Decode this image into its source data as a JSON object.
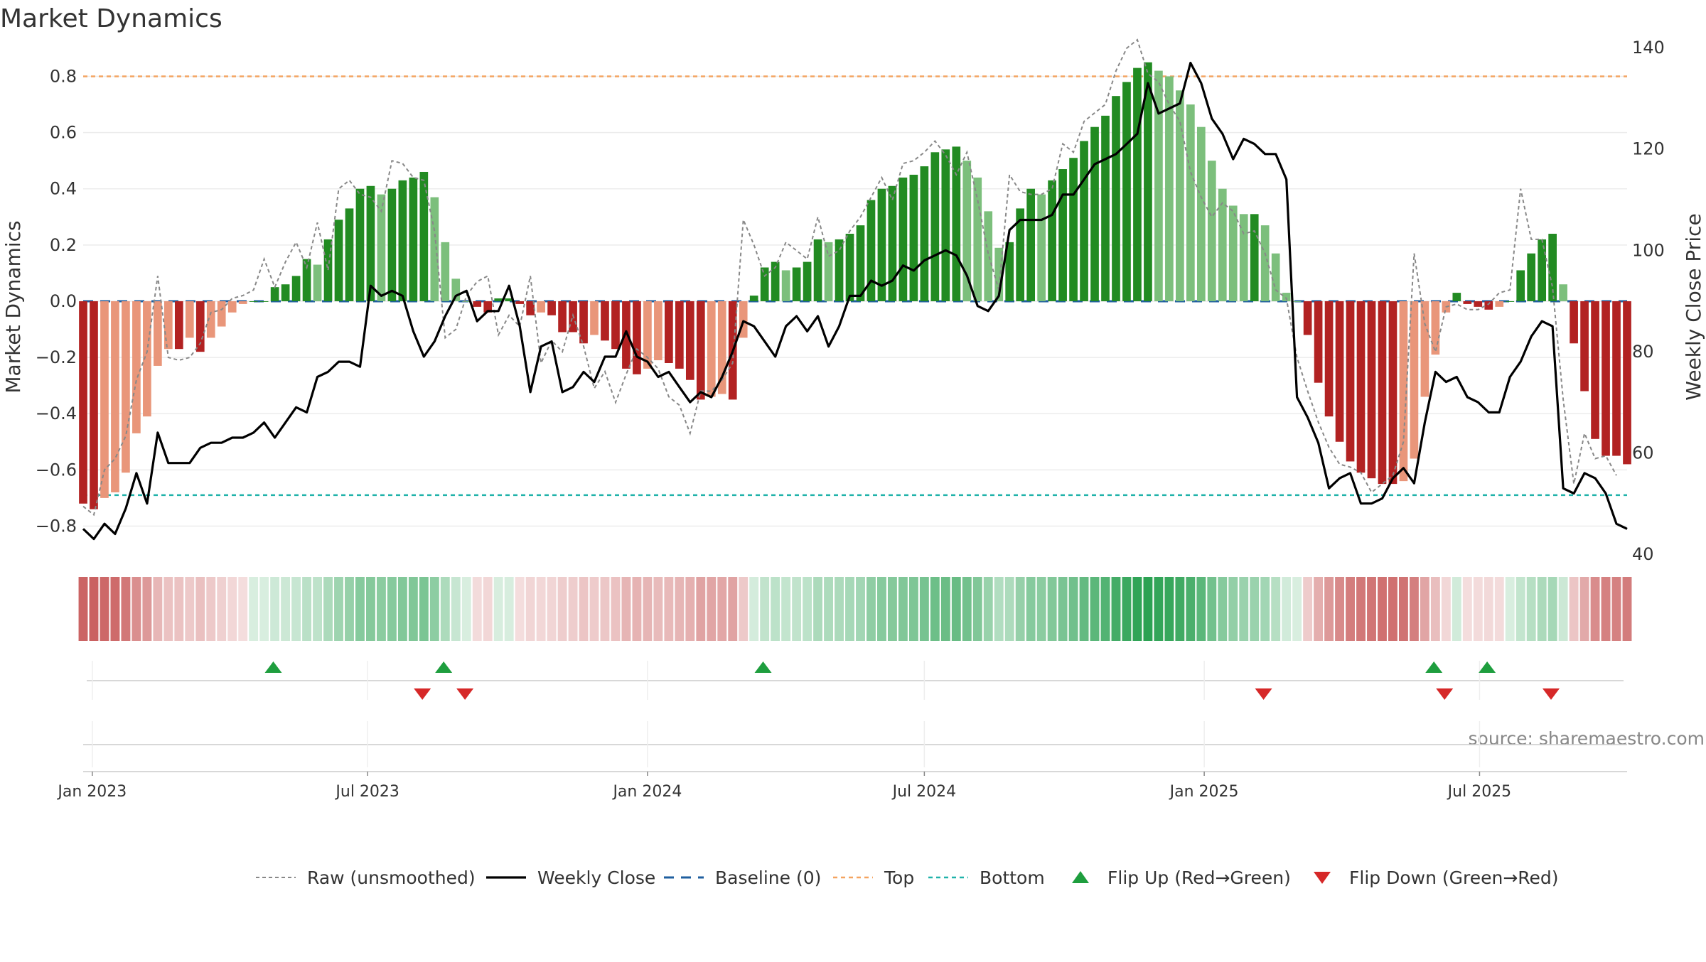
{
  "chart_data": {
    "type": "bar",
    "title": "Market Dynamics",
    "ylabel": "Market Dynamics",
    "y2label": "Weekly Close Price",
    "ylim": [
      -0.9,
      0.92
    ],
    "y2lim": [
      40,
      141
    ],
    "yticks": [
      -0.8,
      -0.6,
      -0.4,
      -0.2,
      0,
      0.2,
      0.4,
      0.6,
      0.8
    ],
    "y2ticks": [
      40,
      60,
      80,
      100,
      120,
      140
    ],
    "start_date": "2022-12-26",
    "x_ticks": [
      {
        "label": "Jan 2023",
        "date": "2023-01-01"
      },
      {
        "label": "Jul 2023",
        "date": "2023-07-01"
      },
      {
        "label": "Jan 2024",
        "date": "2024-01-01"
      },
      {
        "label": "Jul 2024",
        "date": "2024-07-01"
      },
      {
        "label": "Jan 2025",
        "date": "2025-01-01"
      },
      {
        "label": "Jul 2025",
        "date": "2025-07-01"
      }
    ],
    "top_level": 0.8,
    "bottom_level": -0.69,
    "baseline": 0,
    "series": [
      {
        "name": "Market Dynamics",
        "values": [
          -0.72,
          -0.74,
          -0.7,
          -0.68,
          -0.61,
          -0.47,
          -0.41,
          -0.23,
          -0.17,
          -0.17,
          -0.13,
          -0.18,
          -0.13,
          -0.09,
          -0.04,
          -0.01,
          0,
          0,
          0.05,
          0.06,
          0.09,
          0.15,
          0.13,
          0.22,
          0.29,
          0.33,
          0.4,
          0.41,
          0.38,
          0.4,
          0.43,
          0.44,
          0.46,
          0.37,
          0.21,
          0.08,
          0,
          -0.02,
          -0.04,
          0.01,
          0.01,
          -0.01,
          -0.05,
          -0.04,
          -0.05,
          -0.11,
          -0.11,
          -0.15,
          -0.12,
          -0.14,
          -0.17,
          -0.24,
          -0.26,
          -0.24,
          -0.21,
          -0.22,
          -0.24,
          -0.28,
          -0.35,
          -0.34,
          -0.33,
          -0.35,
          -0.13,
          0.02,
          0.12,
          0.14,
          0.11,
          0.12,
          0.14,
          0.22,
          0.21,
          0.22,
          0.24,
          0.27,
          0.36,
          0.4,
          0.41,
          0.44,
          0.45,
          0.48,
          0.53,
          0.54,
          0.55,
          0.5,
          0.44,
          0.32,
          0.19,
          0.21,
          0.33,
          0.4,
          0.38,
          0.43,
          0.47,
          0.51,
          0.57,
          0.62,
          0.66,
          0.73,
          0.78,
          0.83,
          0.85,
          0.82,
          0.8,
          0.75,
          0.7,
          0.62,
          0.5,
          0.4,
          0.34,
          0.31,
          0.31,
          0.27,
          0.17,
          0.03,
          0,
          -0.12,
          -0.29,
          -0.41,
          -0.5,
          -0.57,
          -0.61,
          -0.63,
          -0.65,
          -0.65,
          -0.64,
          -0.56,
          -0.34,
          -0.19,
          -0.04,
          0.03,
          -0.01,
          -0.02,
          -0.03,
          -0.02,
          0,
          0.11,
          0.17,
          0.22,
          0.24,
          0.06,
          -0.15,
          -0.32,
          -0.49,
          -0.55,
          -0.55,
          -0.58
        ]
      },
      {
        "name": "Raw (unsmoothed)",
        "values": [
          -0.73,
          -0.76,
          -0.6,
          -0.56,
          -0.48,
          -0.28,
          -0.18,
          0.09,
          -0.2,
          -0.21,
          -0.2,
          -0.15,
          -0.04,
          -0.03,
          0.01,
          0.02,
          0.04,
          0.15,
          0.05,
          0.14,
          0.21,
          0.12,
          0.28,
          0.11,
          0.4,
          0.43,
          0.38,
          0.37,
          0.32,
          0.5,
          0.49,
          0.44,
          0.43,
          0.25,
          -0.13,
          -0.1,
          0.02,
          0.07,
          0.09,
          -0.12,
          -0.05,
          -0.09,
          0.09,
          -0.22,
          -0.14,
          -0.18,
          -0.05,
          -0.16,
          -0.31,
          -0.25,
          -0.36,
          -0.26,
          -0.17,
          -0.2,
          -0.24,
          -0.34,
          -0.37,
          -0.47,
          -0.32,
          -0.32,
          -0.28,
          -0.22,
          0.29,
          0.2,
          0.09,
          0.12,
          0.21,
          0.18,
          0.15,
          0.3,
          0.16,
          0.18,
          0.25,
          0.3,
          0.37,
          0.44,
          0.36,
          0.49,
          0.5,
          0.53,
          0.57,
          0.52,
          0.45,
          0.53,
          0.36,
          0.17,
          0.04,
          0.45,
          0.39,
          0.38,
          0.38,
          0.4,
          0.56,
          0.53,
          0.64,
          0.67,
          0.7,
          0.82,
          0.9,
          0.93,
          0.81,
          0.78,
          0.7,
          0.64,
          0.46,
          0.37,
          0.3,
          0.35,
          0.32,
          0.24,
          0.25,
          0.17,
          0.04,
          0.01,
          -0.2,
          -0.32,
          -0.43,
          -0.52,
          -0.58,
          -0.59,
          -0.61,
          -0.68,
          -0.65,
          -0.62,
          -0.5,
          0.17,
          -0.08,
          -0.18,
          -0.02,
          -0.01,
          -0.03,
          -0.03,
          -0.01,
          0.03,
          0.04,
          0.4,
          0.22,
          0.22,
          0.05,
          -0.35,
          -0.65,
          -0.47,
          -0.56,
          -0.55,
          -0.62
        ]
      },
      {
        "name": "Weekly Close",
        "values": [
          45,
          43,
          46,
          44,
          49,
          56,
          50,
          64,
          58,
          58,
          58,
          61,
          62,
          62,
          63,
          63,
          64,
          66,
          63,
          66,
          69,
          68,
          75,
          76,
          78,
          78,
          77,
          93,
          91,
          92,
          91,
          84,
          79,
          82,
          87,
          91,
          92,
          86,
          88,
          88,
          93,
          85,
          72,
          81,
          82,
          72,
          73,
          76,
          74,
          79,
          79,
          84,
          79,
          78,
          75,
          76,
          73,
          70,
          72,
          71,
          75,
          80,
          86,
          85,
          82,
          79,
          85,
          87,
          84,
          87,
          81,
          85,
          91,
          91,
          94,
          93,
          94,
          97,
          96,
          98,
          99,
          100,
          99,
          95,
          89,
          88,
          91,
          104,
          106,
          106,
          106,
          107,
          111,
          111,
          114,
          117,
          118,
          119,
          121,
          123,
          133,
          127,
          128,
          129,
          137,
          133,
          126,
          123,
          118,
          122,
          121,
          119,
          119,
          114,
          71,
          67,
          62,
          53,
          55,
          56,
          50,
          50,
          51,
          55,
          57,
          54,
          66,
          76,
          74,
          75,
          71,
          70,
          68,
          68,
          75,
          78,
          83,
          86,
          85,
          53,
          52,
          56,
          55,
          52,
          46,
          45
        ]
      },
      {
        "name": "Baseline (0)",
        "values": []
      },
      {
        "name": "Top",
        "values": []
      },
      {
        "name": "Bottom",
        "values": []
      },
      {
        "name": "Flip Up (Red→Green)",
        "values": [
          "2023-04-30",
          "2023-08-20",
          "2024-03-17",
          "2025-06-01",
          "2025-07-06"
        ]
      },
      {
        "name": "Flip Down (Green→Red)",
        "values": [
          "2023-08-06",
          "2023-09-03",
          "2025-02-09",
          "2025-06-08",
          "2025-08-17"
        ]
      }
    ],
    "legend_position": "bottom-center",
    "grid": true,
    "colors": {
      "green_strong": "#228b22",
      "green_light": "#7cbf7c",
      "red_strong": "#b22222",
      "red_light": "#e9967a",
      "top_line": "#f4a460",
      "bottom_line": "#20b2aa",
      "baseline": "#1f5f9f",
      "raw_line": "#888888",
      "close_line": "#000000",
      "flip_up": "#1e9e3e",
      "flip_down": "#d62828"
    }
  },
  "source_label": "source: sharemaestro.com"
}
